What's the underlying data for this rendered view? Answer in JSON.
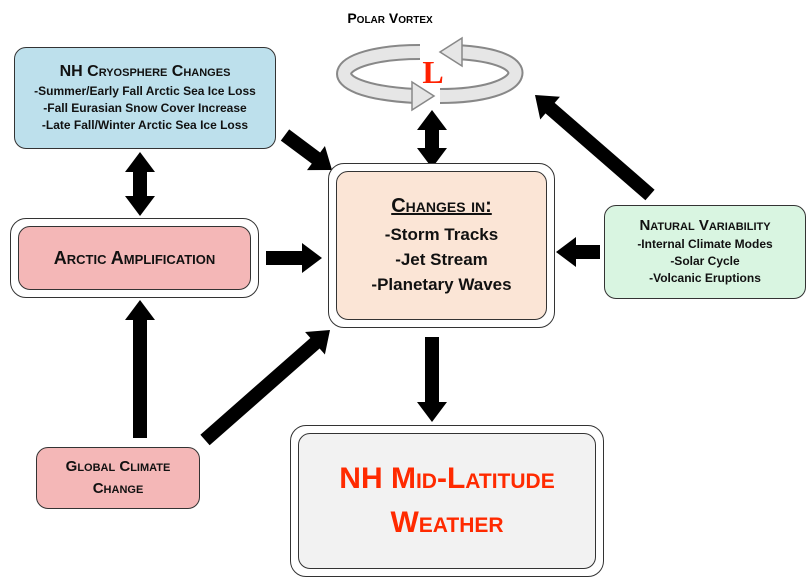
{
  "polar_vortex": {
    "title": "Polar Vortex",
    "symbol": "L"
  },
  "nodes": [
    {
      "title": "NH Cryosphere Changes",
      "items": [
        "-Summer/Early Fall Arctic Sea Ice Loss",
        "-Fall Eurasian Snow Cover Increase",
        "-Late Fall/Winter Arctic Sea Ice Loss"
      ]
    },
    {
      "title": "Arctic Amplification"
    },
    {
      "title": "Changes in:",
      "items": [
        "-Storm Tracks",
        "-Jet Stream",
        "-Planetary Waves"
      ]
    },
    {
      "title": "Natural Variability",
      "items": [
        "-Internal Climate Modes",
        "-Solar Cycle",
        "-Volcanic Eruptions"
      ]
    },
    {
      "title": "Global Climate Change"
    },
    {
      "title": "NH Mid-Latitude Weather"
    }
  ]
}
